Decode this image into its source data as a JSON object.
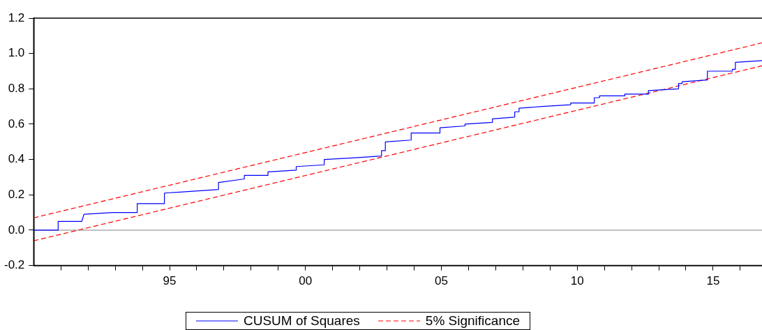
{
  "chart_data": {
    "type": "line",
    "xlim": [
      1990,
      2016.8
    ],
    "xticks": [
      {
        "value": 1991,
        "label": null
      },
      {
        "value": 1992,
        "label": null
      },
      {
        "value": 1993,
        "label": null
      },
      {
        "value": 1994,
        "label": null
      },
      {
        "value": 1995,
        "label": "95"
      },
      {
        "value": 1996,
        "label": null
      },
      {
        "value": 1997,
        "label": null
      },
      {
        "value": 1998,
        "label": null
      },
      {
        "value": 1999,
        "label": null
      },
      {
        "value": 2000,
        "label": "00"
      },
      {
        "value": 2001,
        "label": null
      },
      {
        "value": 2002,
        "label": null
      },
      {
        "value": 2003,
        "label": null
      },
      {
        "value": 2004,
        "label": null
      },
      {
        "value": 2005,
        "label": "05"
      },
      {
        "value": 2006,
        "label": null
      },
      {
        "value": 2007,
        "label": null
      },
      {
        "value": 2008,
        "label": null
      },
      {
        "value": 2009,
        "label": null
      },
      {
        "value": 2010,
        "label": "10"
      },
      {
        "value": 2011,
        "label": null
      },
      {
        "value": 2012,
        "label": null
      },
      {
        "value": 2013,
        "label": null
      },
      {
        "value": 2014,
        "label": null
      },
      {
        "value": 2015,
        "label": "15"
      },
      {
        "value": 2016,
        "label": null
      }
    ],
    "ylim": [
      -0.2,
      1.2
    ],
    "yticks": [
      {
        "value": -0.2,
        "label": "-0.2"
      },
      {
        "value": 0,
        "label": "0.0"
      },
      {
        "value": 0.2,
        "label": "0.2"
      },
      {
        "value": 0.4,
        "label": "0.4"
      },
      {
        "value": 0.6,
        "label": "0.6"
      },
      {
        "value": 0.8,
        "label": "0.8"
      },
      {
        "value": 1,
        "label": "1.0"
      },
      {
        "value": 1.2,
        "label": "1.2"
      }
    ],
    "grid": false,
    "legend": "bottom",
    "marker": "none",
    "ref_lines": [
      {
        "axis": "y",
        "value": 0,
        "color": "#808080"
      }
    ],
    "series": [
      {
        "name": "CUSUM of Squares",
        "color": "#0000ff",
        "line_style": "solid",
        "x": [
          1990,
          1990.9,
          1990.9,
          1991.77,
          1991.85,
          1992.91,
          1993.81,
          1993.81,
          1994.81,
          1994.81,
          1996.8,
          1996.8,
          1997.75,
          1997.75,
          1998.62,
          1998.62,
          1999.66,
          1999.66,
          2000.69,
          2000.69,
          2001.83,
          2002.8,
          2002.8,
          2002.94,
          2002.94,
          2003.89,
          2003.89,
          2004.95,
          2004.95,
          2005.87,
          2005.87,
          2006.88,
          2006.88,
          2007.7,
          2007.7,
          2007.86,
          2007.86,
          2008.7,
          2009.76,
          2009.76,
          2010.63,
          2010.63,
          2010.82,
          2010.82,
          2011.75,
          2011.75,
          2012.62,
          2012.62,
          2013.73,
          2013.73,
          2013.86,
          2013.86,
          2014.79,
          2014.79,
          2015.71,
          2015.71,
          2015.82,
          2015.82,
          2016.8
        ],
        "values": [
          0,
          0,
          0.05,
          0.05,
          0.09,
          0.1,
          0.1,
          0.15,
          0.15,
          0.21,
          0.23,
          0.27,
          0.29,
          0.31,
          0.31,
          0.33,
          0.34,
          0.36,
          0.37,
          0.4,
          0.41,
          0.42,
          0.45,
          0.45,
          0.5,
          0.51,
          0.55,
          0.55,
          0.58,
          0.59,
          0.6,
          0.61,
          0.63,
          0.64,
          0.67,
          0.67,
          0.69,
          0.7,
          0.71,
          0.72,
          0.72,
          0.75,
          0.75,
          0.76,
          0.76,
          0.77,
          0.77,
          0.79,
          0.8,
          0.83,
          0.83,
          0.84,
          0.85,
          0.9,
          0.9,
          0.91,
          0.91,
          0.95,
          0.96
        ]
      },
      {
        "name": "5% Significance",
        "color": "#ff0000",
        "line_style": "dashed",
        "x": [
          1990,
          2016.8
        ],
        "values": [
          0.07,
          1.06
        ]
      },
      {
        "color": "#ff0000",
        "line_style": "dashed",
        "x": [
          1990,
          2016.8
        ],
        "values": [
          -0.06,
          0.93
        ]
      }
    ]
  }
}
